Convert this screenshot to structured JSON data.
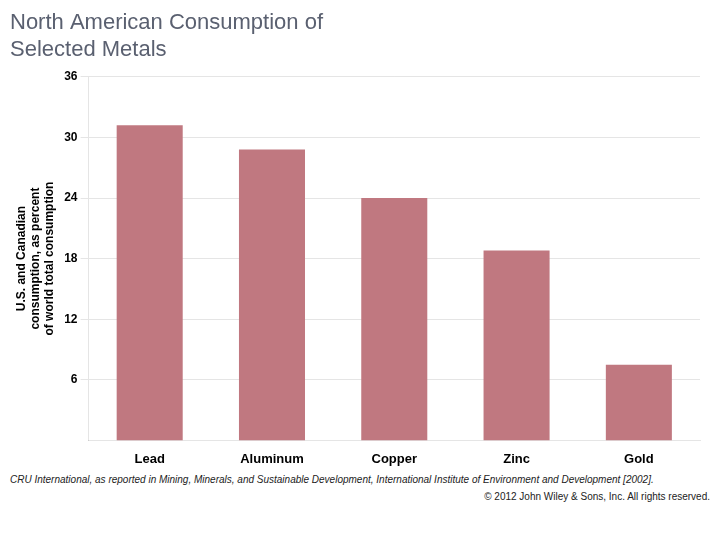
{
  "chart_data": {
    "type": "bar",
    "title": "North American Consumption of\nSelected Metals",
    "ylabel": "U.S. and Canadian\nconsumption, as percent\nof world total consumption",
    "categories": [
      "Lead",
      "Aluminum",
      "Copper",
      "Zinc",
      "Gold"
    ],
    "values": [
      31.2,
      28.8,
      24.0,
      18.8,
      7.5
    ],
    "color": "#c07880",
    "ylim": [
      0,
      36
    ],
    "yticks": [
      6,
      12,
      18,
      24,
      30,
      36
    ],
    "grid": true,
    "annotations": [
      "CRU International, as reported in Mining, Minerals, and Sustainable Development, International Institute of Environment and Development [2002].",
      "© 2012 John Wiley & Sons, Inc.  All rights reserved."
    ]
  }
}
